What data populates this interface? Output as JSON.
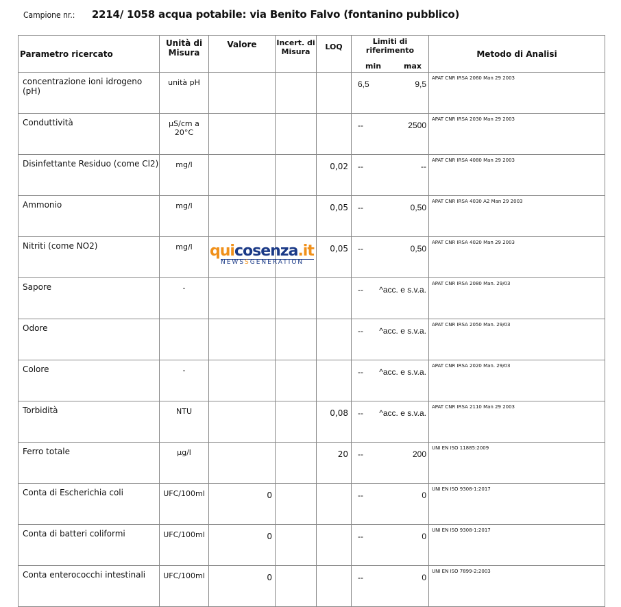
{
  "header": {
    "label": "Campione nr.:",
    "title": "2214/ 1058 acqua potabile: via Benito Falvo (fontanino pubblico)"
  },
  "columns": {
    "param": "Parametro ricercato",
    "unit": "Unità di Misura",
    "value": "Valore",
    "uncert": "Incert. di Misura",
    "loq": "LOQ",
    "limits": "Limiti di riferimento",
    "min": "min",
    "max": "max",
    "method": "Metodo di Analisi"
  },
  "rows": [
    {
      "param": "concentrazione ioni idrogeno (pH)",
      "unit": "unità pH",
      "value": "",
      "uncert": "",
      "loq": "",
      "min": "6,5",
      "max": "9,5",
      "method": "APAT CNR IRSA 2060 Man 29 2003"
    },
    {
      "param": "Conduttività",
      "unit": "µS/cm a 20°C",
      "value": "",
      "uncert": "",
      "loq": "",
      "min": "--",
      "max": "2500",
      "method": "APAT CNR IRSA 2030 Man 29 2003"
    },
    {
      "param": "Disinfettante Residuo (come Cl2)",
      "unit": "mg/l",
      "value": "",
      "uncert": "",
      "loq": "0,02",
      "min": "--",
      "max": "--",
      "method": "APAT CNR IRSA 4080 Man 29 2003"
    },
    {
      "param": "Ammonio",
      "unit": "mg/l",
      "value": "",
      "uncert": "",
      "loq": "0,05",
      "min": "--",
      "max": "0,50",
      "method": "APAT CNR IRSA 4030 A2 Man 29 2003"
    },
    {
      "param": "Nitriti (come NO2)",
      "unit": "mg/l",
      "value": "",
      "uncert": "",
      "loq": "0,05",
      "min": "--",
      "max": "0,50",
      "method": "APAT CNR IRSA 4020 Man 29 2003"
    },
    {
      "param": "Sapore",
      "unit": "-",
      "value": "",
      "uncert": "",
      "loq": "",
      "min": "--",
      "max": "^acc. e s.v.a.",
      "method": "APAT CNR IRSA 2080 Man. 29/03"
    },
    {
      "param": "Odore",
      "unit": "",
      "value": "",
      "uncert": "",
      "loq": "",
      "min": "--",
      "max": "^acc. e s.v.a.",
      "method": "APAT CNR IRSA 2050 Man. 29/03"
    },
    {
      "param": "Colore",
      "unit": "-",
      "value": "",
      "uncert": "",
      "loq": "",
      "min": "--",
      "max": "^acc. e s.v.a.",
      "method": "APAT CNR IRSA 2020 Man. 29/03"
    },
    {
      "param": "Torbidità",
      "unit": "NTU",
      "value": "",
      "uncert": "",
      "loq": "0,08",
      "min": "--",
      "max": "^acc. e s.v.a.",
      "method": "APAT CNR IRSA 2110 Man 29 2003"
    },
    {
      "param": "Ferro totale",
      "unit": "µg/l",
      "value": "",
      "uncert": "",
      "loq": "20",
      "min": "--",
      "max": "200",
      "method": "UNI EN ISO 11885:2009"
    },
    {
      "param": "Conta di Escherichia coli",
      "unit": "UFC/100ml",
      "value": "0",
      "uncert": "",
      "loq": "",
      "min": "--",
      "max": "0",
      "method": "UNI EN ISO 9308-1:2017"
    },
    {
      "param": "Conta di batteri coliformi",
      "unit": "UFC/100ml",
      "value": "0",
      "uncert": "",
      "loq": "",
      "min": "--",
      "max": "0",
      "method": "UNI EN ISO 9308-1:2017"
    },
    {
      "param": "Conta enterococchi intestinali",
      "unit": "UFC/100ml",
      "value": "0",
      "uncert": "",
      "loq": "",
      "min": "--",
      "max": "0",
      "method": "UNI EN ISO 7899-2:2003"
    }
  ],
  "watermark": {
    "part1": "qui",
    "part2": "cosenza",
    "part3": ".it",
    "sub1": "NEWS",
    "sub2": "S",
    "sub3": "GENERATION",
    "colors": {
      "orange": "#f0901a",
      "blue": "#1b3a87"
    }
  }
}
